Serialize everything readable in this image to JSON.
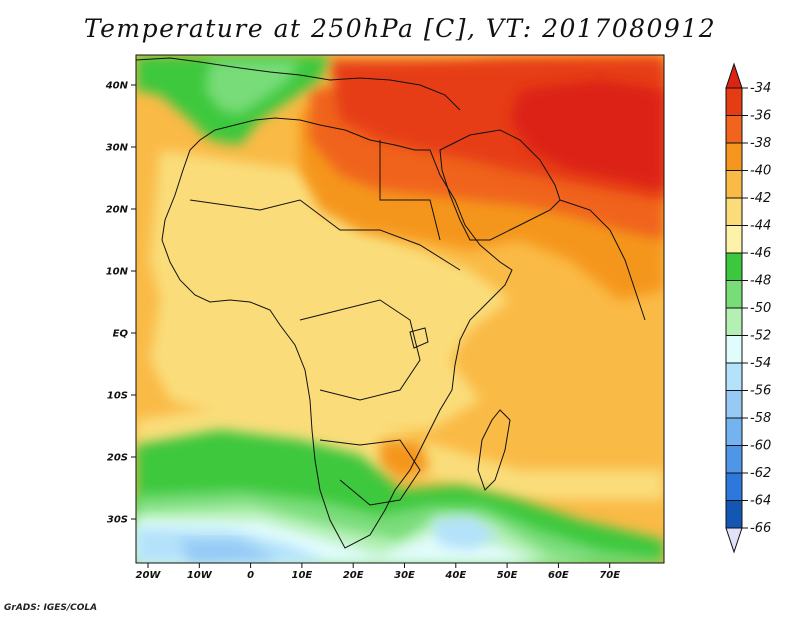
{
  "title": "Temperature at 250hPa [C], VT: 2017080912",
  "credit": "GrADS: IGES/COLA",
  "axes": {
    "lon_labels": [
      "20W",
      "10W",
      "0",
      "10E",
      "20E",
      "30E",
      "40E",
      "50E",
      "60E",
      "70E"
    ],
    "lat_labels": [
      "40N",
      "30N",
      "20N",
      "10N",
      "EQ",
      "10S",
      "20S",
      "30S"
    ]
  },
  "colorbar": {
    "labels": [
      "-34",
      "-36",
      "-38",
      "-40",
      "-42",
      "-44",
      "-46",
      "-48",
      "-50",
      "-52",
      "-54",
      "-56",
      "-58",
      "-60",
      "-62",
      "-64",
      "-66"
    ],
    "colors": [
      "#e63c14",
      "#f0641e",
      "#f5961e",
      "#faba46",
      "#fadd7a",
      "#fcf3a8",
      "#3cc83c",
      "#78dc78",
      "#b4f0b4",
      "#e1fcfc",
      "#b4e2fa",
      "#96caf5",
      "#73b4f0",
      "#5096e6",
      "#2d78dc",
      "#1456b4",
      "#0a2896"
    ],
    "top_arrow_color": "#dc2314",
    "bottom_arrow_color": "#e1e1fa"
  },
  "legend": {
    "min_label": "-66",
    "max_label": "-34",
    "units": "C"
  }
}
